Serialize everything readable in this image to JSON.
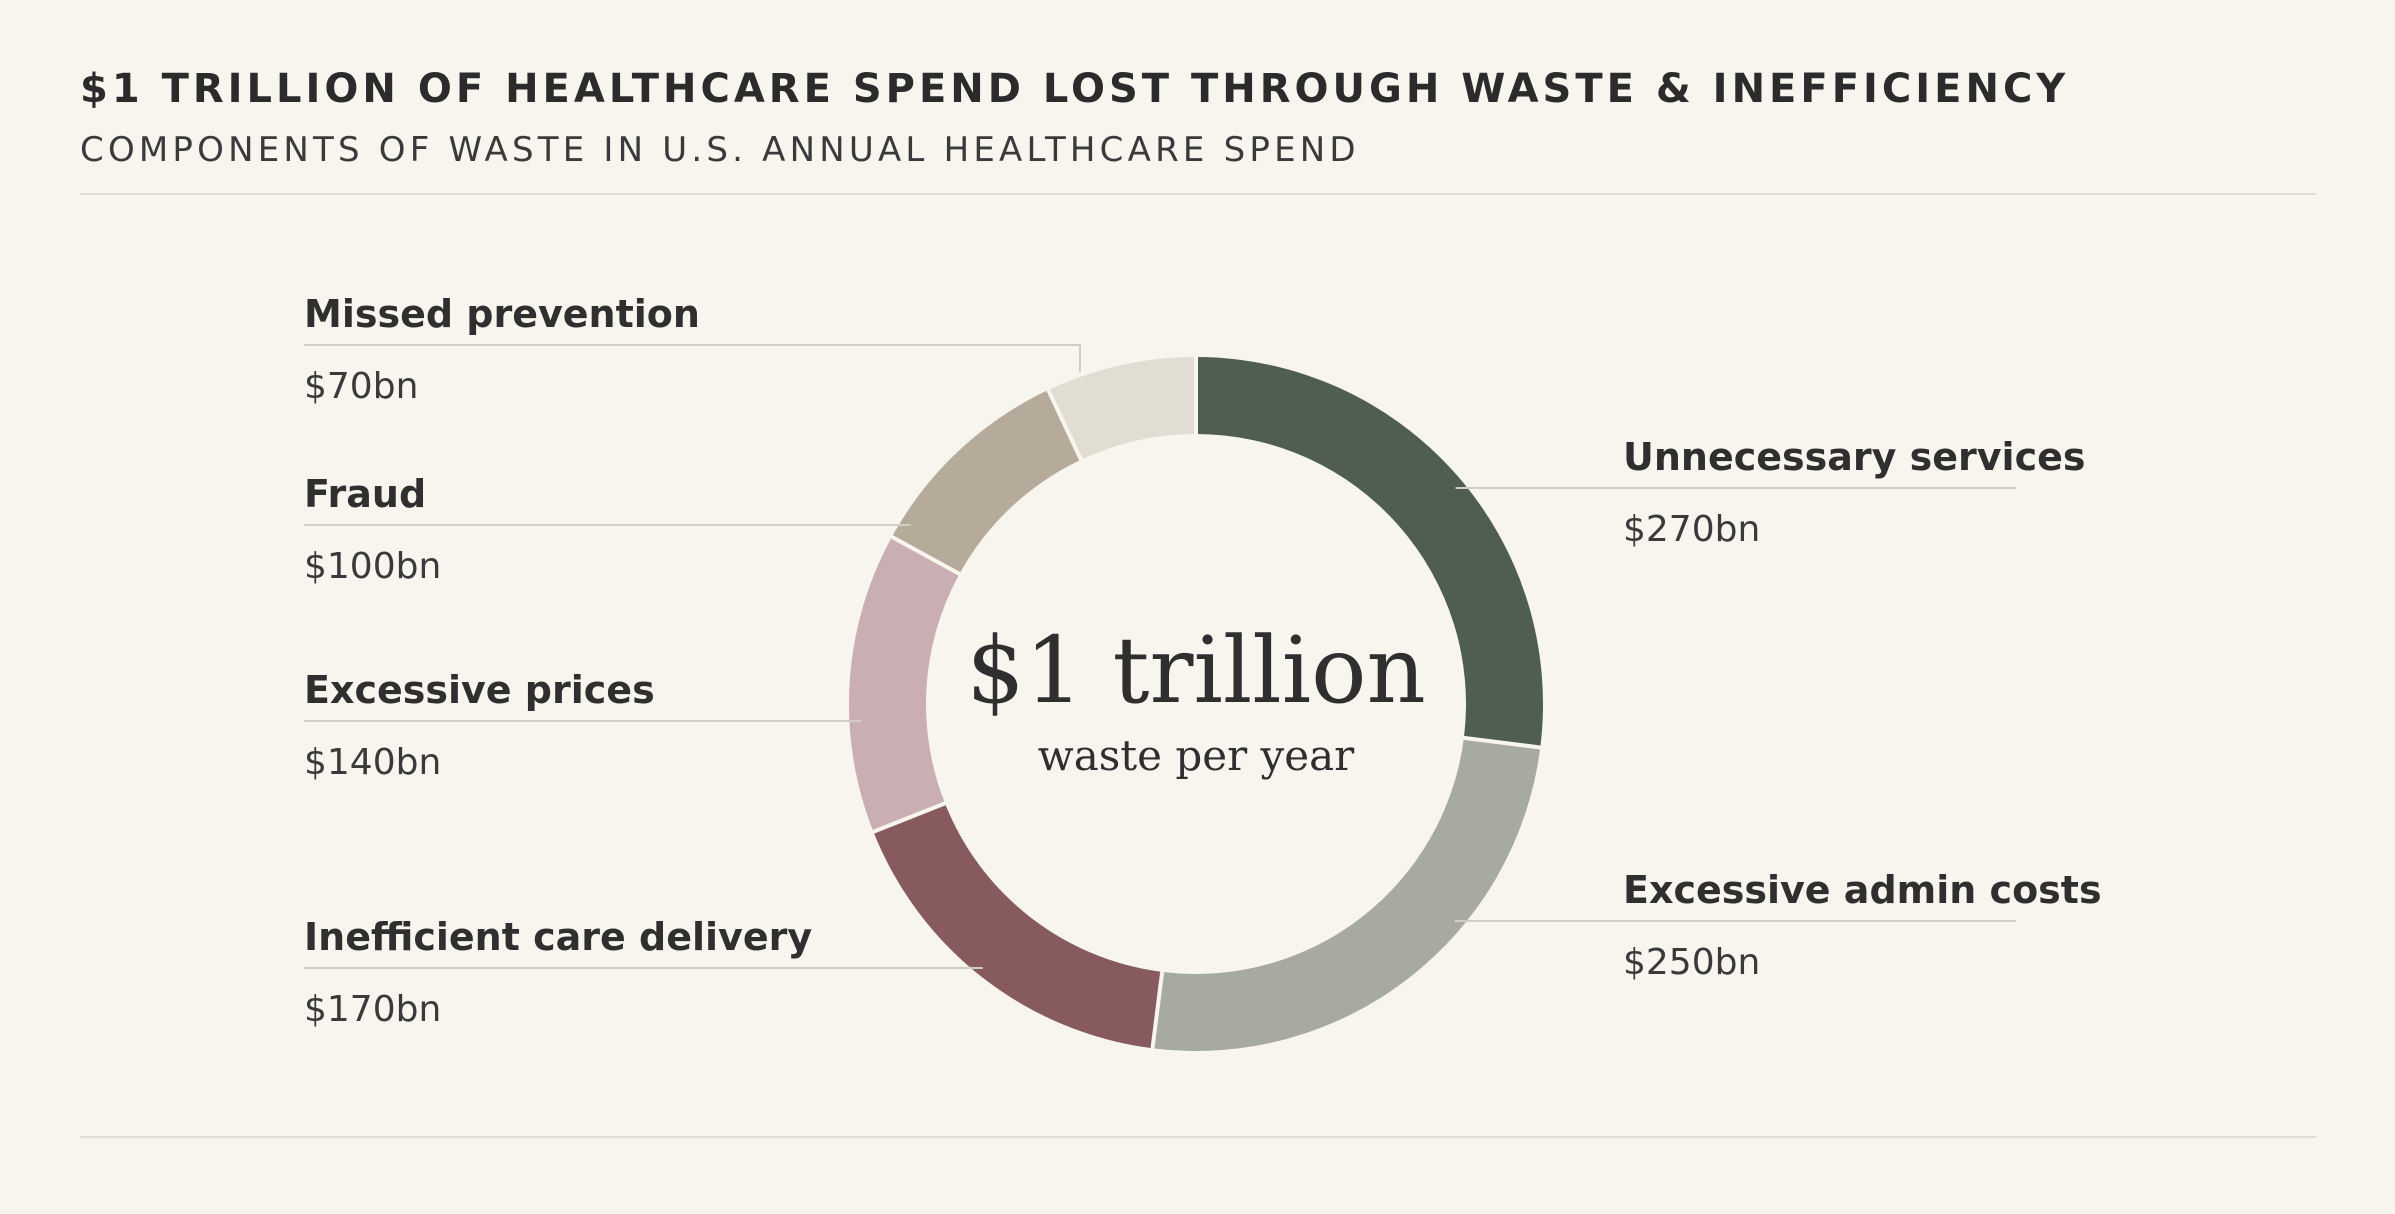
{
  "header": {
    "title": "$1 TRILLION OF HEALTHCARE SPEND LOST THROUGH WASTE & INEFFICIENCY",
    "subtitle": "COMPONENTS OF WASTE IN U.S. ANNUAL HEALTHCARE SPEND"
  },
  "center_label": {
    "main": "$1 trillion",
    "sub": "waste per year"
  },
  "chart_data": {
    "type": "pie",
    "donut": true,
    "legend": "none",
    "title": "$1 TRILLION OF HEALTHCARE SPEND LOST THROUGH WASTE & INEFFICIENCY",
    "subtitle": "COMPONENTS OF WASTE IN U.S. ANNUAL HEALTHCARE SPEND",
    "unit": "$bn",
    "slices": [
      {
        "label": "Unnecessary services",
        "value": 270,
        "value_label": "$270bn",
        "color": "#505e52"
      },
      {
        "label": "Excessive admin costs",
        "value": 250,
        "value_label": "$250bn",
        "color": "#a7aaa0"
      },
      {
        "label": "Inefficient care delivery",
        "value": 170,
        "value_label": "$170bn",
        "color": "#875b5d"
      },
      {
        "label": "Excessive prices",
        "value": 140,
        "value_label": "$140bn",
        "color": "#c9afb3"
      },
      {
        "label": "Fraud",
        "value": 100,
        "value_label": "$100bn",
        "color": "#b6aa9b"
      },
      {
        "label": "Missed prevention",
        "value": 70,
        "value_label": "$70bn",
        "color": "#e2ddd2"
      }
    ]
  }
}
